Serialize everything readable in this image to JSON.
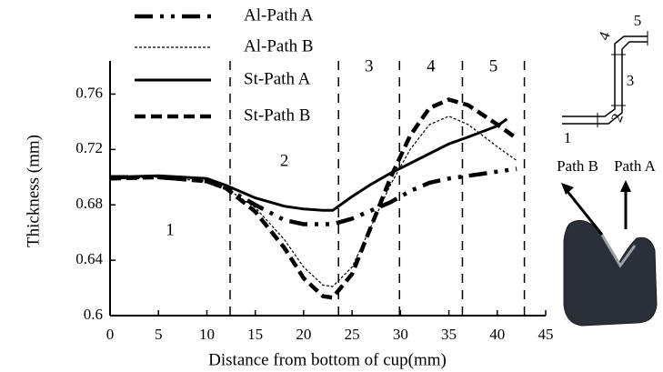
{
  "chart_data": {
    "type": "line",
    "x_label": "Distance from bottom of cup(mm)",
    "y_label": "Thickness (mm)",
    "x": [
      0,
      5,
      10,
      12,
      15,
      18,
      20,
      22,
      23,
      25,
      27,
      29,
      31,
      33,
      35,
      37,
      40,
      41,
      42
    ],
    "series": [
      {
        "name": "Al-Path A",
        "color": "#000000",
        "values": [
          0.7,
          0.7,
          0.697,
          0.692,
          0.68,
          0.669,
          0.666,
          0.666,
          0.666,
          0.67,
          0.676,
          0.682,
          0.69,
          0.696,
          0.699,
          0.701,
          0.704,
          0.705,
          0.706
        ]
      },
      {
        "name": "Al-Path B",
        "color": "#000000",
        "values": [
          0.699,
          0.7,
          0.697,
          0.692,
          0.678,
          0.655,
          0.635,
          0.622,
          0.621,
          0.635,
          0.665,
          0.695,
          0.72,
          0.738,
          0.744,
          0.738,
          0.722,
          0.717,
          0.712
        ]
      },
      {
        "name": "St-Path A",
        "color": "#000000",
        "values": [
          0.7,
          0.701,
          0.699,
          0.694,
          0.685,
          0.679,
          0.677,
          0.676,
          0.676,
          0.686,
          0.695,
          0.703,
          0.71,
          0.717,
          0.724,
          0.729,
          0.737,
          0.742,
          null
        ]
      },
      {
        "name": "St-Path B",
        "color": "#000000",
        "values": [
          0.699,
          0.7,
          0.697,
          0.692,
          0.675,
          0.649,
          0.627,
          0.614,
          0.613,
          0.63,
          0.665,
          0.7,
          0.73,
          0.75,
          0.756,
          0.752,
          0.738,
          0.733,
          0.728
        ]
      }
    ],
    "xlim": [
      0,
      45
    ],
    "xticks": [
      0,
      5,
      10,
      15,
      20,
      25,
      30,
      35,
      40,
      45
    ],
    "ylim": [
      0.6,
      0.78
    ],
    "yticks": [
      0.6,
      0.64,
      0.68,
      0.72,
      0.76
    ],
    "regions": {
      "boundaries": [
        12.4,
        23.6,
        29.9,
        36.4,
        42.8
      ],
      "labels": [
        "1",
        "2",
        "3",
        "4",
        "5"
      ]
    }
  },
  "inset": {
    "labels": [
      "1",
      "2",
      "3",
      "4",
      "5"
    ],
    "path_labels": [
      "Path B",
      "Path A"
    ]
  }
}
